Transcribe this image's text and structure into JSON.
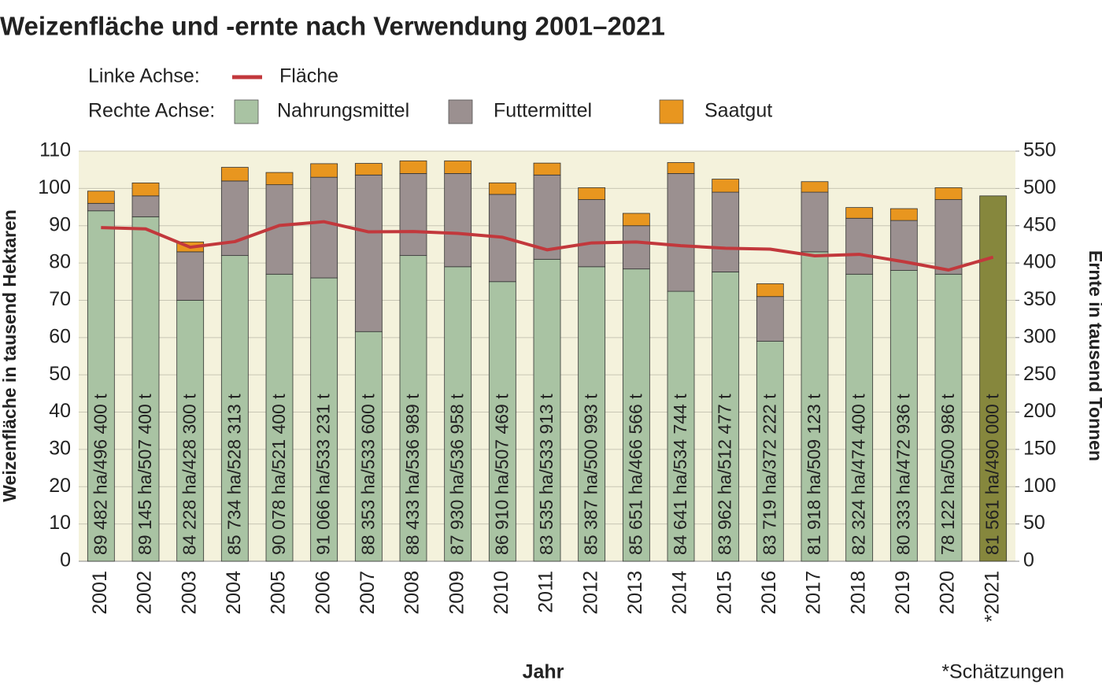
{
  "chart_data": {
    "type": "bar",
    "title": "Weizenfläche und -ernte nach Verwendung 2001–2021",
    "legend_left_label": "Linke Achse:",
    "legend_right_label": "Rechte Achse:",
    "ylabel": "Weizenfläche in tausend Hektaren",
    "y2label": "Ernte in tausend Tonnen",
    "xlabel": "Jahr",
    "note": "*Schätzungen",
    "categories": [
      "2001",
      "2002",
      "2003",
      "2004",
      "2005",
      "2006",
      "2007",
      "2008",
      "2009",
      "2010",
      "2011",
      "2012",
      "2013",
      "2014",
      "2015",
      "2016",
      "2017",
      "2018",
      "2019",
      "2020",
      "*2021"
    ],
    "bar_labels": [
      "89 482 ha/496 400 t",
      "89 145 ha/507 400 t",
      "84 228 ha/428 300 t",
      "85 734 ha/528 313 t",
      "90 078 ha/521 400 t",
      "91 066 ha/533 231 t",
      "88 353 ha/533 600 t",
      "88 433 ha/536 989 t",
      "87 930 ha/536 958 t",
      "86 910 ha/507 469 t",
      "83 535 ha/533 913 t",
      "85 387 ha/500 993 t",
      "85 651 ha/466 566 t",
      "84 641 ha/534 744 t",
      "83 962 ha/512 477 t",
      "83 719 ha/372 222 t",
      "81 918 ha/509 123 t",
      "82 324 ha/474 400 t",
      "80 333 ha/472 936 t",
      "78 122 ha/500 986 t",
      "81 561 ha/490 000 t"
    ],
    "series": [
      {
        "name": "Fläche",
        "type": "line",
        "axis": "y",
        "color": "#c2383c",
        "values": [
          89.482,
          89.145,
          84.228,
          85.734,
          90.078,
          91.066,
          88.353,
          88.433,
          87.93,
          86.91,
          83.535,
          85.387,
          85.651,
          84.641,
          83.962,
          83.719,
          81.918,
          82.324,
          80.333,
          78.122,
          81.561
        ]
      },
      {
        "name": "Nahrungsmittel",
        "type": "bar",
        "axis": "y2",
        "color": "#a9c3a3",
        "colors": [
          "#a9c3a3",
          "#a9c3a3",
          "#a9c3a3",
          "#a9c3a3",
          "#a9c3a3",
          "#a9c3a3",
          "#a9c3a3",
          "#a9c3a3",
          "#a9c3a3",
          "#a9c3a3",
          "#a9c3a3",
          "#a9c3a3",
          "#a9c3a3",
          "#a9c3a3",
          "#a9c3a3",
          "#a9c3a3",
          "#a9c3a3",
          "#a9c3a3",
          "#a9c3a3",
          "#a9c3a3",
          "#86873d"
        ],
        "values": [
          470,
          462,
          350,
          410,
          385,
          380,
          308,
          410,
          395,
          375,
          405,
          395,
          392,
          362,
          388,
          295,
          415,
          385,
          390,
          385,
          490
        ]
      },
      {
        "name": "Futtermittel",
        "type": "bar",
        "axis": "y2",
        "color": "#9b9090",
        "values": [
          10,
          28,
          65,
          100,
          120,
          135,
          210,
          110,
          125,
          117,
          113,
          90,
          58,
          158,
          107,
          60,
          80,
          75,
          67,
          100,
          null
        ]
      },
      {
        "name": "Saatgut",
        "type": "bar",
        "axis": "y2",
        "color": "#e8961f",
        "values": [
          16.4,
          17.4,
          13.3,
          18.3,
          16.4,
          18.2,
          15.6,
          17,
          17,
          15.5,
          16,
          16,
          16.6,
          14.7,
          17.5,
          17.2,
          14.1,
          14.4,
          15.9,
          16,
          null
        ]
      }
    ],
    "ylim": [
      0,
      110
    ],
    "yticks": [
      0,
      10,
      20,
      30,
      40,
      50,
      60,
      70,
      80,
      90,
      100,
      110
    ],
    "y2lim": [
      0,
      550
    ],
    "y2ticks": [
      0,
      50,
      100,
      150,
      200,
      250,
      300,
      350,
      400,
      450,
      500,
      550
    ],
    "grid": true,
    "background": "#f4f2dc"
  }
}
